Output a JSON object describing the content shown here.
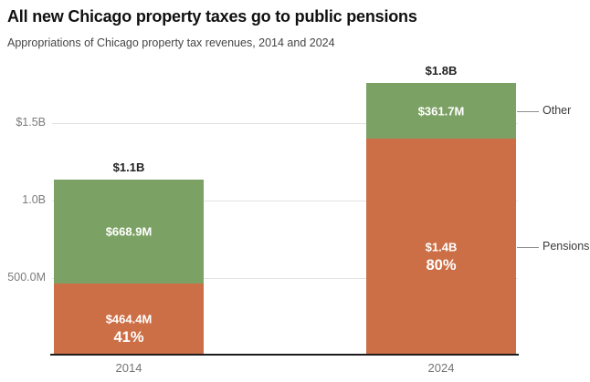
{
  "chart_data": {
    "type": "bar",
    "stacked": true,
    "title": "All new Chicago property taxes go to public pensions",
    "subtitle": "Appropriations of Chicago property tax revenues, 2014 and 2024",
    "categories": [
      "2014",
      "2024"
    ],
    "value_unit": "millions of USD",
    "series": [
      {
        "name": "Pensions",
        "color": "#cc6f46",
        "values": [
          464.4,
          1400
        ],
        "value_labels": [
          "$464.4M",
          "$1.4B"
        ],
        "pct_labels": [
          "41%",
          "80%"
        ]
      },
      {
        "name": "Other",
        "color": "#7ca164",
        "values": [
          668.9,
          361.7
        ],
        "value_labels": [
          "$668.9M",
          "$361.7M"
        ]
      }
    ],
    "totals": {
      "values": [
        1133.3,
        1761.7
      ],
      "labels": [
        "$1.1B",
        "$1.8B"
      ]
    },
    "yticks": [
      {
        "value": 500,
        "label": "500.0M"
      },
      {
        "value": 1000,
        "label": "1.0B"
      },
      {
        "value": 1500,
        "label": "$1.5B"
      }
    ],
    "ylim": [
      0,
      1800
    ],
    "grid": true,
    "legend_position": "right-annotations",
    "right_annotations": [
      "Other",
      "Pensions"
    ]
  },
  "colors": {
    "pensions": "#cc6f46",
    "other": "#7ca164",
    "grid": "#e2e2e2",
    "axis": "#1c1c1c",
    "tick_text": "#7b7b7b",
    "annotation_line": "#8f8f8f"
  }
}
